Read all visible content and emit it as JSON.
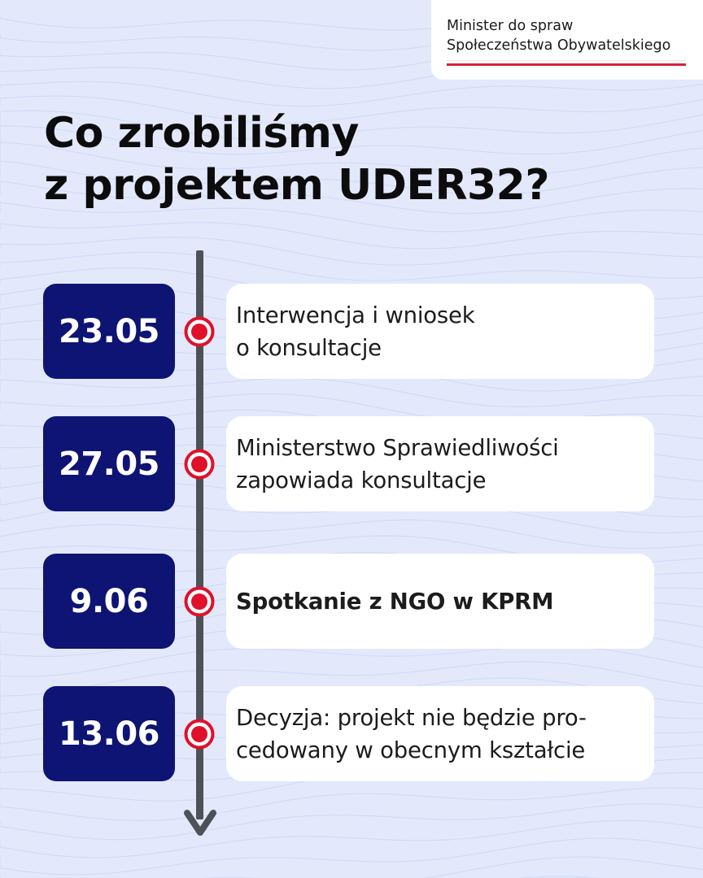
{
  "ministry": {
    "line1": "Minister do spraw",
    "line2": "Społeczeństwa Obywatelskiego",
    "flag_colors": [
      "#ffffff",
      "#d4213d"
    ]
  },
  "title": {
    "line1": "Co zrobiliśmy",
    "line2": "z projektem UDER32?"
  },
  "colors": {
    "background": "#e3e9fb",
    "date_box": "#0d1473",
    "timeline": "#4d5158",
    "dot": "#e0102a"
  },
  "timeline": [
    {
      "date": "23.05",
      "text_lines": [
        "Interwencja i wniosek",
        "o konsultacje"
      ],
      "bold": false
    },
    {
      "date": "27.05",
      "text_lines": [
        "Ministerstwo Sprawiedliwości",
        "zapowiada konsultacje"
      ],
      "bold": false
    },
    {
      "date": "9.06",
      "text_lines": [
        "Spotkanie z NGO w KPRM"
      ],
      "bold": true
    },
    {
      "date": "13.06",
      "text_lines": [
        "Decyzja: projekt nie będzie pro-",
        "cedowany w obecnym kształcie"
      ],
      "bold": false
    }
  ]
}
